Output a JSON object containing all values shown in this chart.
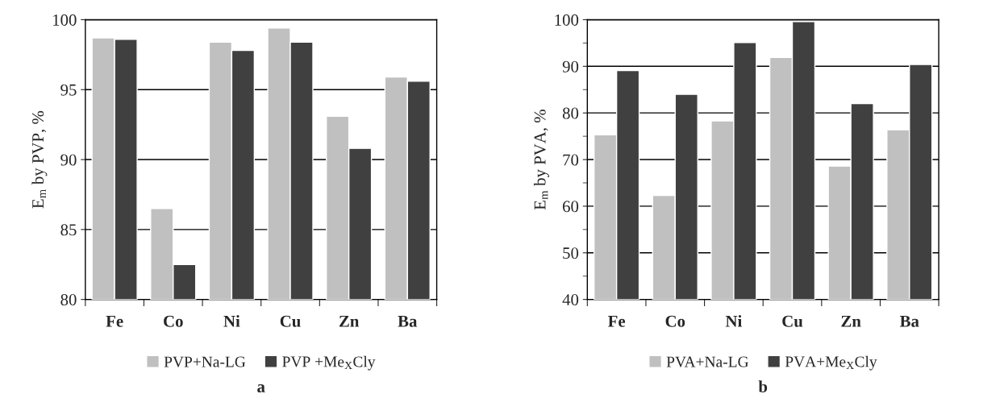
{
  "chart_data": [
    {
      "type": "bar",
      "categories": [
        "Fe",
        "Co",
        "Ni",
        "Cu",
        "Zn",
        "Ba"
      ],
      "ylabel": "E$_{m}$ by PVP, %",
      "ylim": [
        80,
        100
      ],
      "yticks": [
        80,
        85,
        90,
        95,
        100
      ],
      "grid": "y",
      "legend": "bottom",
      "annotations": [
        "a"
      ],
      "series": [
        {
          "name": "PVP+Na-LG",
          "color": "#c0c0c0",
          "values": [
            98.7,
            86.5,
            98.4,
            99.4,
            93.1,
            95.9
          ]
        },
        {
          "name": "PVP +Me$_{X}$Cly",
          "color": "#404040",
          "values": [
            98.6,
            82.5,
            97.8,
            98.4,
            90.8,
            95.6
          ]
        }
      ]
    },
    {
      "type": "bar",
      "categories": [
        "Fe",
        "Co",
        "Ni",
        "Cu",
        "Zn",
        "Ba"
      ],
      "ylabel": "E$_{m}$ by PVA, %",
      "ylim": [
        40,
        100
      ],
      "yticks": [
        40,
        {
          "value": 45,
          "label": null
        },
        50,
        {
          "value": 55,
          "label": null
        },
        60,
        {
          "value": 65,
          "label": null
        },
        70,
        {
          "value": 75,
          "label": null
        },
        80,
        {
          "value": 85,
          "label": null
        },
        90,
        {
          "value": 95,
          "label": null
        },
        100
      ],
      "grid": "y",
      "legend": "bottom",
      "annotations": [
        "b"
      ],
      "series": [
        {
          "name": "PVA+Na-LG",
          "color": "#c0c0c0",
          "values": [
            75.3,
            62.3,
            78.3,
            91.9,
            68.6,
            76.4
          ]
        },
        {
          "name": "PVA+Me$_{X}$Cly",
          "color": "#404040",
          "values": [
            89.1,
            84.0,
            95.1,
            99.6,
            82.0,
            90.4
          ]
        }
      ]
    }
  ]
}
